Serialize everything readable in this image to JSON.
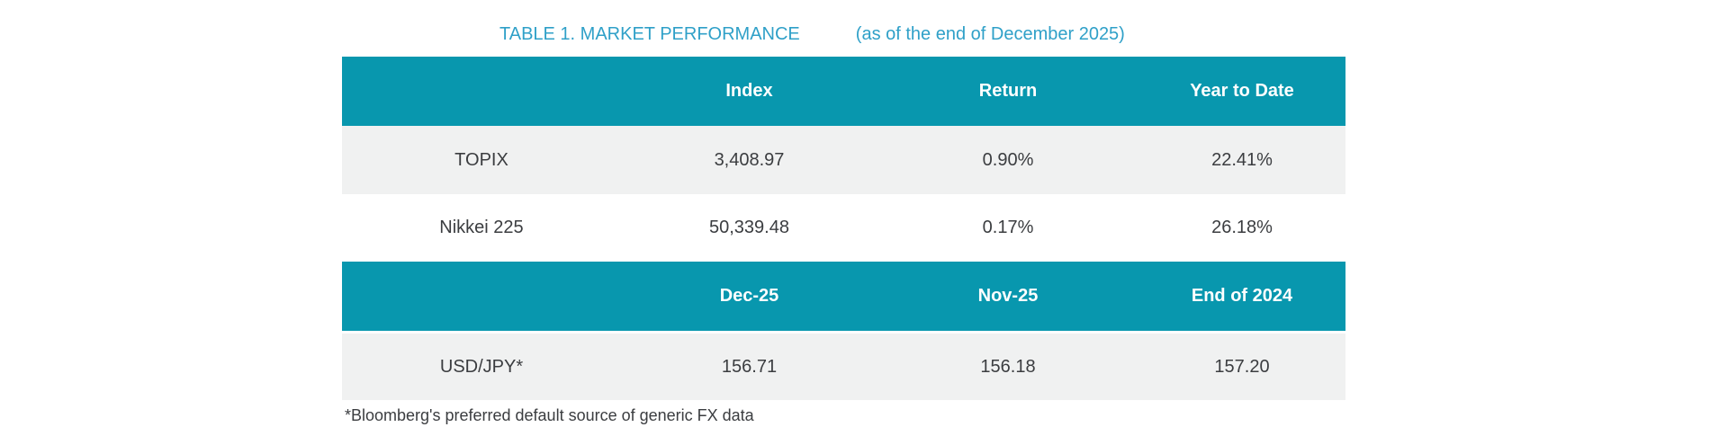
{
  "title": {
    "main": "TABLE 1. MARKET PERFORMANCE",
    "suffix": "(as of the end of December 2025)"
  },
  "colors": {
    "header_band_bg": "#0897AE",
    "header_band_text": "#FFFFFF",
    "alt_row_bg": "#F0F1F1",
    "title_text": "#2FA0C8",
    "body_text": "#3B3D40",
    "page_bg": "#FFFFFF"
  },
  "index_table": {
    "headers": {
      "col2": "Index",
      "col3": "Return",
      "col4": "Year to Date"
    },
    "rows": [
      {
        "label": "TOPIX",
        "index": "3,408.97",
        "return": "0.90%",
        "ytd": "22.41%"
      },
      {
        "label": "Nikkei 225",
        "index": "50,339.48",
        "return": "0.17%",
        "ytd": "26.18%"
      }
    ]
  },
  "fx_table": {
    "headers": {
      "col2": "Dec-25",
      "col3": "Nov-25",
      "col4": "End of 2024"
    },
    "rows": [
      {
        "label": "USD/JPY*",
        "dec": "156.71",
        "nov": "156.18",
        "end2024": "157.20"
      }
    ]
  },
  "footnote": "*Bloomberg's preferred default source of generic FX data",
  "chart_data": {
    "type": "table",
    "title": "TABLE 1. MARKET PERFORMANCE (as of the end of December 2025)",
    "sections": [
      {
        "columns": [
          "",
          "Index",
          "Return",
          "Year to Date"
        ],
        "rows": [
          [
            "TOPIX",
            3408.97,
            "0.90%",
            "22.41%"
          ],
          [
            "Nikkei 225",
            50339.48,
            "0.17%",
            "26.18%"
          ]
        ]
      },
      {
        "columns": [
          "",
          "Dec-25",
          "Nov-25",
          "End of 2024"
        ],
        "rows": [
          [
            "USD/JPY*",
            156.71,
            156.18,
            157.2
          ]
        ]
      }
    ]
  }
}
